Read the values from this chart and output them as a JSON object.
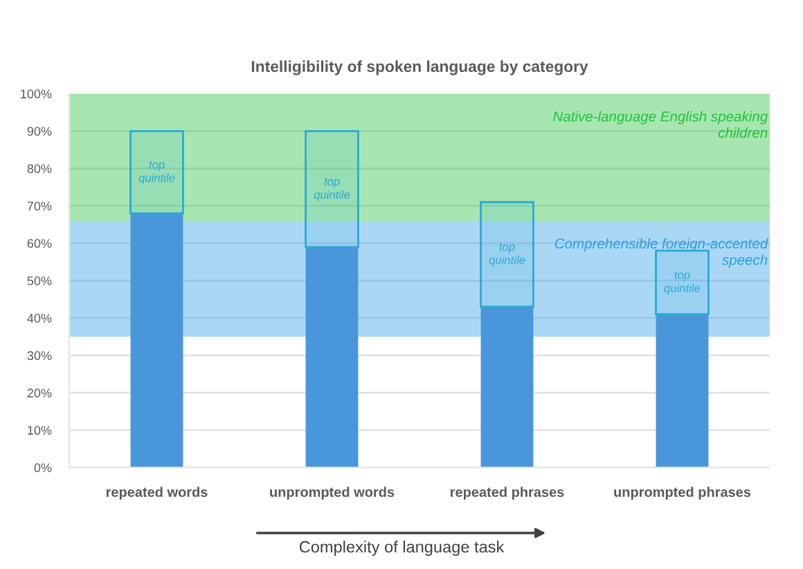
{
  "chart_data": {
    "type": "bar",
    "title": "Intelligibility of spoken language by category",
    "xlabel": "Complexity of language task",
    "categories": [
      "repeated words",
      "unprompted words",
      "repeated phrases",
      "unprompted phrases"
    ],
    "stacked": true,
    "series": [
      {
        "color": "#4a96da",
        "values": [
          68,
          59,
          43,
          41
        ]
      },
      {
        "name": "top quintile",
        "color": "#2aa8d8",
        "values": [
          22,
          31,
          28,
          17
        ]
      }
    ],
    "ylim": [
      0,
      100
    ],
    "yticks": [
      {
        "value": 0,
        "label": "0%"
      },
      {
        "value": 10,
        "label": "10%"
      },
      {
        "value": 20,
        "label": "20%"
      },
      {
        "value": 30,
        "label": "30%"
      },
      {
        "value": 40,
        "label": "40%"
      },
      {
        "value": 50,
        "label": "50%"
      },
      {
        "value": 60,
        "label": "60%"
      },
      {
        "value": 70,
        "label": "70%"
      },
      {
        "value": 80,
        "label": "80%"
      },
      {
        "value": 90,
        "label": "90%"
      },
      {
        "value": 100,
        "label": "100%"
      }
    ],
    "grid": "y",
    "bands": [
      {
        "axis": "y",
        "from": 66,
        "to": 100,
        "label": "Native-language English speaking\nchildren",
        "color": "#22c03a"
      },
      {
        "axis": "y",
        "from": 35,
        "to": 66,
        "label": "Comprehensible foreign-accented\nspeech",
        "color": "#2b9de3"
      }
    ]
  }
}
